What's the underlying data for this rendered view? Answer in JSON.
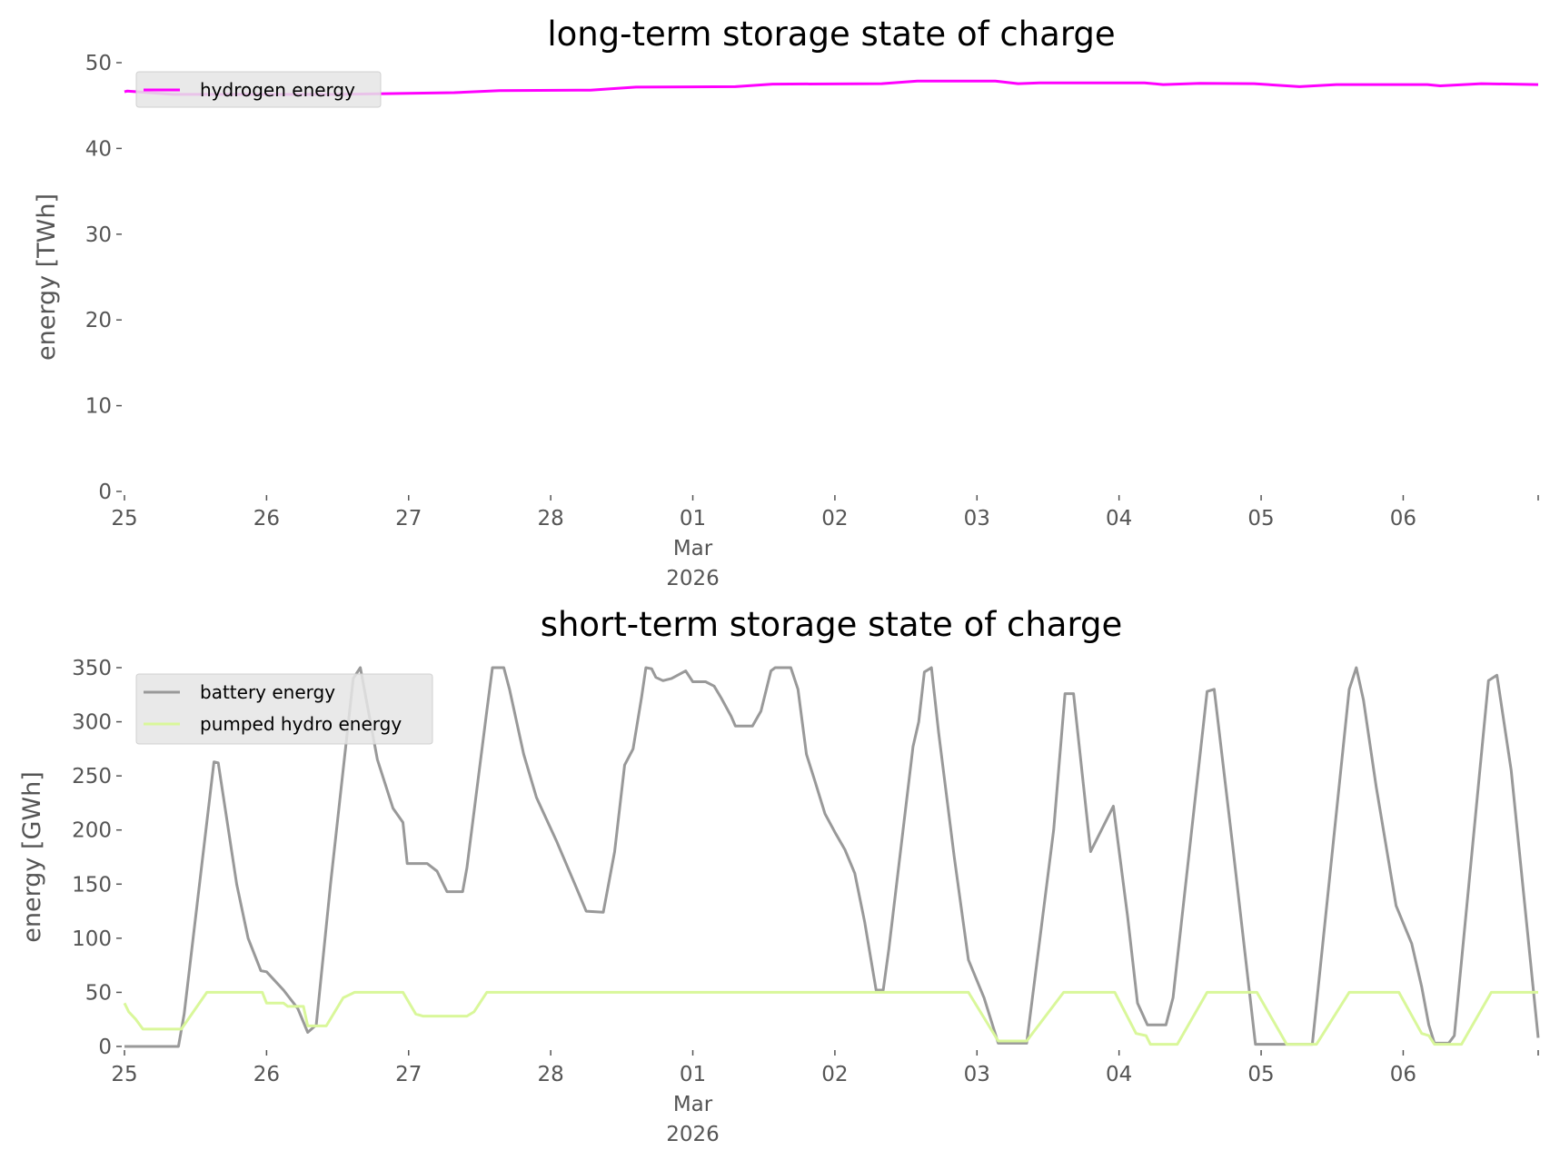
{
  "chart_data": [
    {
      "type": "line",
      "title": "long-term storage state of charge",
      "xlabel": "",
      "ylabel": "energy [TWh]",
      "x_units": "days since 25 Feb 2026 00:00",
      "xlim": [
        0,
        9.95
      ],
      "ylim": [
        0,
        50
      ],
      "yticks": [
        "0",
        "10",
        "20",
        "30",
        "40",
        "50"
      ],
      "xticks": [
        {
          "day": 0,
          "label": "25"
        },
        {
          "day": 1,
          "label": "26"
        },
        {
          "day": 2,
          "label": "27"
        },
        {
          "day": 3,
          "label": "28"
        },
        {
          "day": 4,
          "label": "01",
          "sub": [
            "Mar",
            "2026"
          ]
        },
        {
          "day": 5,
          "label": "02"
        },
        {
          "day": 6,
          "label": "03"
        },
        {
          "day": 7,
          "label": "04"
        },
        {
          "day": 8,
          "label": "05"
        },
        {
          "day": 9,
          "label": "06"
        },
        {
          "day": 9.95,
          "label": ""
        }
      ],
      "grid": false,
      "legend": "top-left",
      "series": [
        {
          "name": "hydrogen energy",
          "color": "#ff00ff",
          "points": [
            [
              0,
              46.6
            ],
            [
              0.02,
              46.7
            ],
            [
              0.34,
              46.3
            ],
            [
              1.5,
              46.3
            ],
            [
              2.32,
              46.5
            ],
            [
              2.64,
              46.75
            ],
            [
              3.28,
              46.8
            ],
            [
              3.6,
              47.15
            ],
            [
              4.3,
              47.2
            ],
            [
              4.56,
              47.5
            ],
            [
              5.33,
              47.55
            ],
            [
              5.58,
              47.85
            ],
            [
              6.13,
              47.85
            ],
            [
              6.29,
              47.55
            ],
            [
              6.45,
              47.65
            ],
            [
              7.18,
              47.65
            ],
            [
              7.31,
              47.45
            ],
            [
              7.57,
              47.6
            ],
            [
              7.95,
              47.55
            ],
            [
              8.27,
              47.2
            ],
            [
              8.53,
              47.45
            ],
            [
              9.17,
              47.45
            ],
            [
              9.26,
              47.3
            ],
            [
              9.55,
              47.55
            ],
            [
              9.95,
              47.45
            ]
          ]
        }
      ]
    },
    {
      "type": "line",
      "title": "short-term storage state of charge",
      "xlabel": "",
      "ylabel": "energy [GWh]",
      "x_units": "days since 25 Feb 2026 00:00",
      "xlim": [
        0,
        9.95
      ],
      "ylim": [
        0,
        350
      ],
      "yticks": [
        "0",
        "50",
        "100",
        "150",
        "200",
        "250",
        "300",
        "350"
      ],
      "xticks": [
        {
          "day": 0,
          "label": "25"
        },
        {
          "day": 1,
          "label": "26"
        },
        {
          "day": 2,
          "label": "27"
        },
        {
          "day": 3,
          "label": "28"
        },
        {
          "day": 4,
          "label": "01",
          "sub": [
            "Mar",
            "2026"
          ]
        },
        {
          "day": 5,
          "label": "02"
        },
        {
          "day": 6,
          "label": "03"
        },
        {
          "day": 7,
          "label": "04"
        },
        {
          "day": 8,
          "label": "05"
        },
        {
          "day": 9,
          "label": "06"
        },
        {
          "day": 9.95,
          "label": ""
        }
      ],
      "grid": false,
      "legend": "top-left",
      "series": [
        {
          "name": "battery energy",
          "color": "#999999",
          "points": [
            [
              0,
              0
            ],
            [
              0.38,
              0
            ],
            [
              0.42,
              30
            ],
            [
              0.63,
              263
            ],
            [
              0.66,
              262
            ],
            [
              0.79,
              150
            ],
            [
              0.87,
              100
            ],
            [
              0.96,
              70
            ],
            [
              1.0,
              69
            ],
            [
              1.12,
              52
            ],
            [
              1.22,
              35
            ],
            [
              1.29,
              13
            ],
            [
              1.35,
              20
            ],
            [
              1.45,
              150
            ],
            [
              1.61,
              340
            ],
            [
              1.66,
              350
            ],
            [
              1.78,
              265
            ],
            [
              1.89,
              220
            ],
            [
              1.96,
              207
            ],
            [
              1.99,
              169
            ],
            [
              2.13,
              169
            ],
            [
              2.2,
              162
            ],
            [
              2.27,
              143
            ],
            [
              2.38,
              143
            ],
            [
              2.41,
              165
            ],
            [
              2.55,
              310
            ],
            [
              2.59,
              350
            ],
            [
              2.67,
              350
            ],
            [
              2.71,
              330
            ],
            [
              2.81,
              270
            ],
            [
              2.9,
              230
            ],
            [
              3.04,
              190
            ],
            [
              3.17,
              150
            ],
            [
              3.25,
              125
            ],
            [
              3.37,
              124
            ],
            [
              3.45,
              180
            ],
            [
              3.52,
              260
            ],
            [
              3.58,
              275
            ],
            [
              3.64,
              323
            ],
            [
              3.67,
              350
            ],
            [
              3.71,
              349
            ],
            [
              3.74,
              341
            ],
            [
              3.79,
              338
            ],
            [
              3.85,
              340
            ],
            [
              3.95,
              347
            ],
            [
              4.0,
              337
            ],
            [
              4.09,
              337
            ],
            [
              4.15,
              333
            ],
            [
              4.2,
              322
            ],
            [
              4.27,
              305
            ],
            [
              4.3,
              296
            ],
            [
              4.42,
              296
            ],
            [
              4.48,
              310
            ],
            [
              4.55,
              347
            ],
            [
              4.58,
              350
            ],
            [
              4.69,
              350
            ],
            [
              4.74,
              330
            ],
            [
              4.8,
              270
            ],
            [
              4.86,
              245
            ],
            [
              4.93,
              215
            ],
            [
              5.0,
              198
            ],
            [
              5.07,
              182
            ],
            [
              5.14,
              160
            ],
            [
              5.21,
              115
            ],
            [
              5.29,
              52
            ],
            [
              5.34,
              52
            ],
            [
              5.38,
              90
            ],
            [
              5.55,
              277
            ],
            [
              5.59,
              300
            ],
            [
              5.63,
              346
            ],
            [
              5.68,
              350
            ],
            [
              5.73,
              290
            ],
            [
              5.84,
              175
            ],
            [
              5.94,
              80
            ],
            [
              6.05,
              45
            ],
            [
              6.15,
              3
            ],
            [
              6.35,
              3
            ],
            [
              6.54,
              200
            ],
            [
              6.62,
              326
            ],
            [
              6.68,
              326
            ],
            [
              6.8,
              180
            ],
            [
              6.96,
              222
            ],
            [
              7.06,
              120
            ],
            [
              7.13,
              40
            ],
            [
              7.2,
              20
            ],
            [
              7.33,
              20
            ],
            [
              7.38,
              45
            ],
            [
              7.62,
              328
            ],
            [
              7.67,
              330
            ],
            [
              7.8,
              185
            ],
            [
              7.96,
              2
            ],
            [
              8.17,
              2
            ],
            [
              8.36,
              2
            ],
            [
              8.62,
              330
            ],
            [
              8.67,
              350
            ],
            [
              8.72,
              320
            ],
            [
              8.81,
              240
            ],
            [
              8.95,
              130
            ],
            [
              9.06,
              95
            ],
            [
              9.13,
              55
            ],
            [
              9.18,
              20
            ],
            [
              9.22,
              3
            ],
            [
              9.32,
              3
            ],
            [
              9.36,
              10
            ],
            [
              9.6,
              338
            ],
            [
              9.66,
              343
            ],
            [
              9.76,
              255
            ],
            [
              9.95,
              8
            ]
          ]
        },
        {
          "name": "pumped hydro energy",
          "color": "#d9f79a",
          "points": [
            [
              0,
              40
            ],
            [
              0.03,
              32
            ],
            [
              0.08,
              25
            ],
            [
              0.13,
              16
            ],
            [
              0.4,
              16
            ],
            [
              0.58,
              50
            ],
            [
              0.97,
              50
            ],
            [
              1.0,
              40
            ],
            [
              1.12,
              40
            ],
            [
              1.15,
              37
            ],
            [
              1.26,
              37
            ],
            [
              1.29,
              19
            ],
            [
              1.42,
              19
            ],
            [
              1.54,
              45
            ],
            [
              1.62,
              50
            ],
            [
              1.96,
              50
            ],
            [
              2.05,
              30
            ],
            [
              2.1,
              28
            ],
            [
              2.41,
              28
            ],
            [
              2.46,
              32
            ],
            [
              2.55,
              50
            ],
            [
              5.94,
              50
            ],
            [
              6.15,
              5
            ],
            [
              6.35,
              5
            ],
            [
              6.61,
              50
            ],
            [
              6.97,
              50
            ],
            [
              7.12,
              12
            ],
            [
              7.19,
              10
            ],
            [
              7.22,
              2
            ],
            [
              7.41,
              2
            ],
            [
              7.62,
              50
            ],
            [
              7.97,
              50
            ],
            [
              8.18,
              2
            ],
            [
              8.39,
              2
            ],
            [
              8.62,
              50
            ],
            [
              8.97,
              50
            ],
            [
              9.13,
              12
            ],
            [
              9.18,
              10
            ],
            [
              9.22,
              2
            ],
            [
              9.41,
              2
            ],
            [
              9.62,
              50
            ],
            [
              9.95,
              50
            ]
          ]
        }
      ]
    }
  ]
}
